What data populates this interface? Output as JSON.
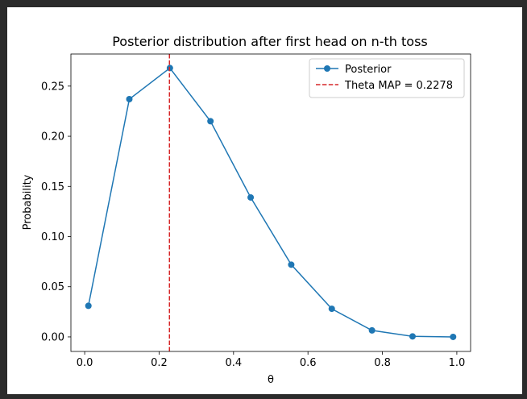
{
  "chart_data": {
    "type": "line",
    "title": "Posterior distribution after first head on n-th toss",
    "xlabel": "θ",
    "ylabel": "Probability",
    "xlim": [
      -0.037,
      1.037
    ],
    "ylim": [
      -0.0145,
      0.282
    ],
    "xticks": [
      0.0,
      0.2,
      0.4,
      0.6,
      0.8,
      1.0
    ],
    "xtick_labels": [
      "0.0",
      "0.2",
      "0.4",
      "0.6",
      "0.8",
      "1.0"
    ],
    "yticks": [
      0.0,
      0.05,
      0.1,
      0.15,
      0.2,
      0.25
    ],
    "ytick_labels": [
      "0.00",
      "0.05",
      "0.10",
      "0.15",
      "0.20",
      "0.25"
    ],
    "grid": false,
    "legend_position": "top-right",
    "series": [
      {
        "name": "Posterior",
        "color": "#1f77b4",
        "marker": "circle",
        "x": [
          0.01,
          0.12,
          0.229,
          0.338,
          0.446,
          0.555,
          0.664,
          0.772,
          0.881,
          0.99
        ],
        "y": [
          0.031,
          0.237,
          0.268,
          0.215,
          0.139,
          0.072,
          0.028,
          0.0065,
          0.0005,
          0.0
        ]
      }
    ],
    "vlines": [
      {
        "name": "Theta MAP = 0.2278",
        "x": 0.2278,
        "color": "#d62728",
        "style": "dashed"
      }
    ]
  }
}
